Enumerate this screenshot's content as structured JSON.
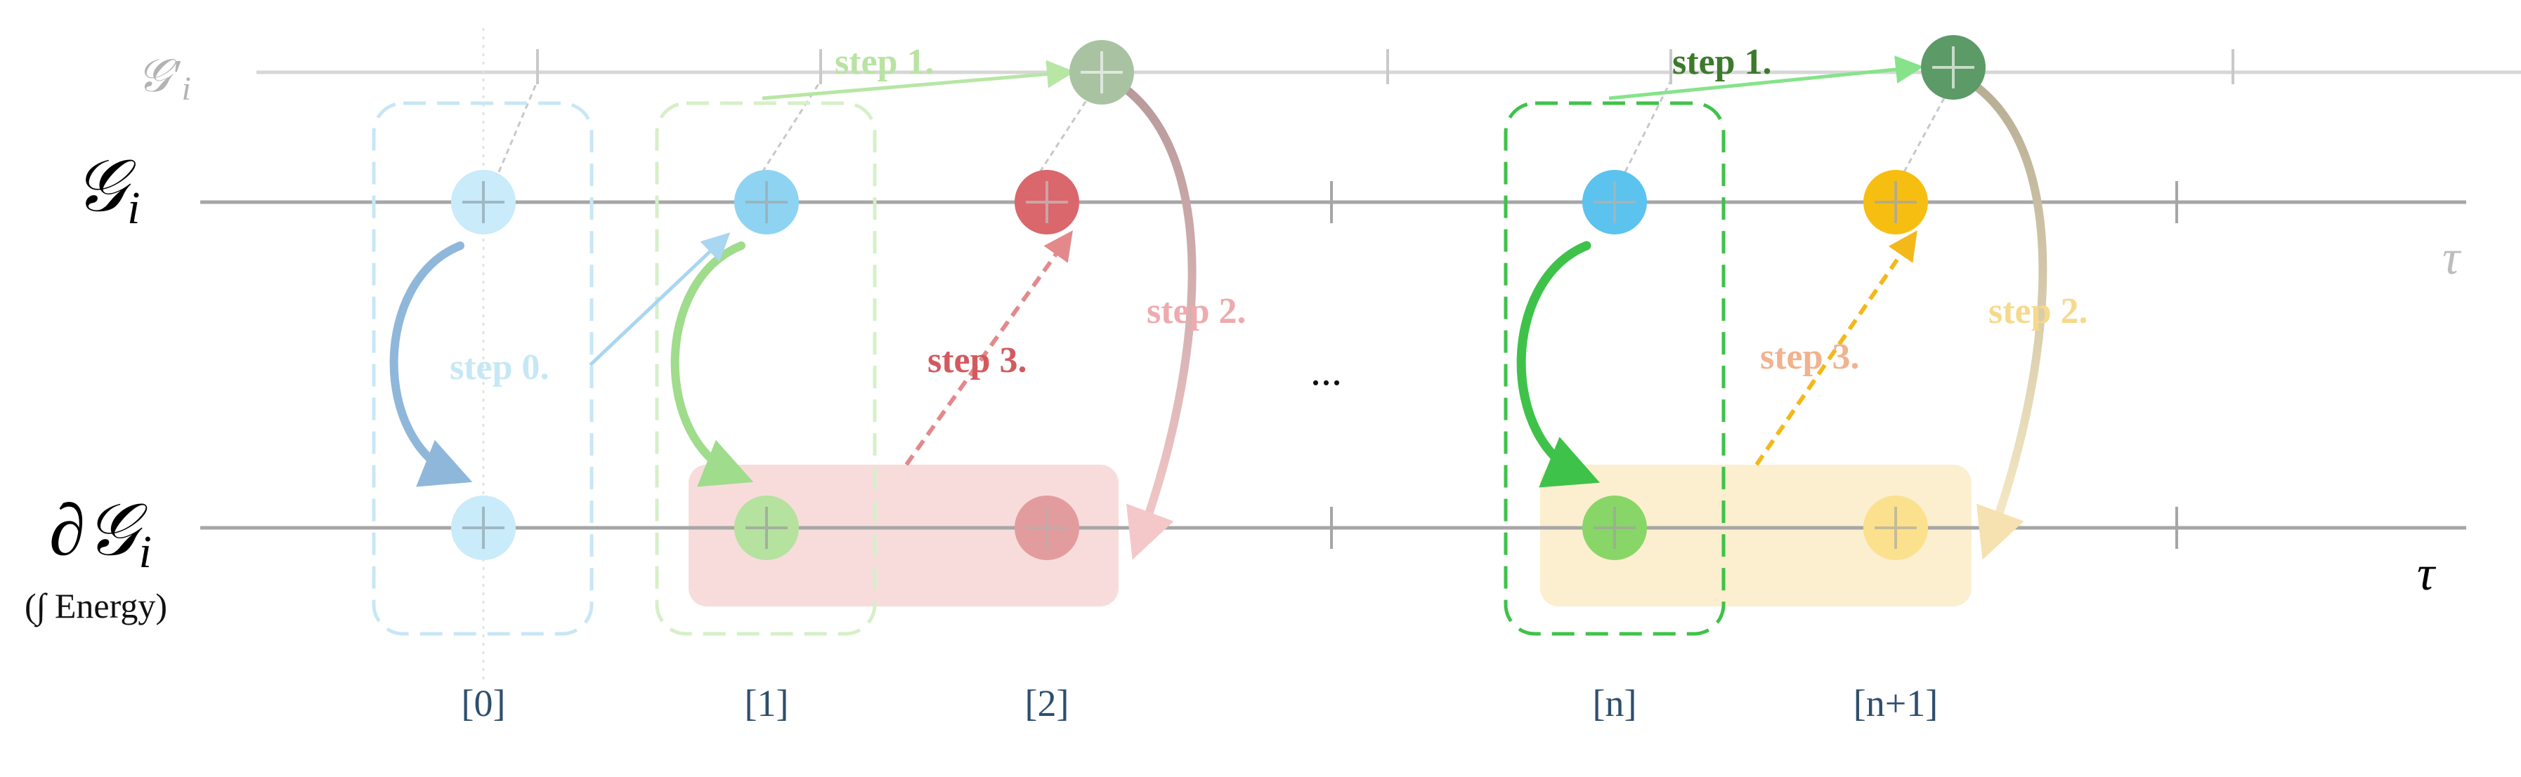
{
  "rows": {
    "g_prime_label": "𝒢′",
    "g_prime_sub": "i",
    "g_label": "𝒢",
    "g_sub": "i",
    "dg_label": "∂𝒢",
    "dg_sub": "i",
    "dg_caption": "(∫ Energy)",
    "tau_upper": "τ",
    "tau_lower": "τ"
  },
  "indices": [
    "[0]",
    "[1]",
    "[2]",
    "[n]",
    "[n+1]"
  ],
  "ellipsis": "...",
  "steps": {
    "step0": "step 0.",
    "step1_a": "step 1.",
    "step1_b": "step 1.",
    "step2_a": "step 2.",
    "step2_b": "step 2.",
    "step3_a": "step 3.",
    "step3_b": "step 3."
  },
  "colors": {
    "axis": "#a6a6a6",
    "blue": "#5bc3ee",
    "green": "#7ccf63",
    "red": "#d9676b",
    "yellow": "#f7be12",
    "dark_green": "#5c9a67",
    "red_band": "#f8dcdc",
    "yellow_band": "#fbefcf",
    "index_text": "#2e4f6e"
  }
}
